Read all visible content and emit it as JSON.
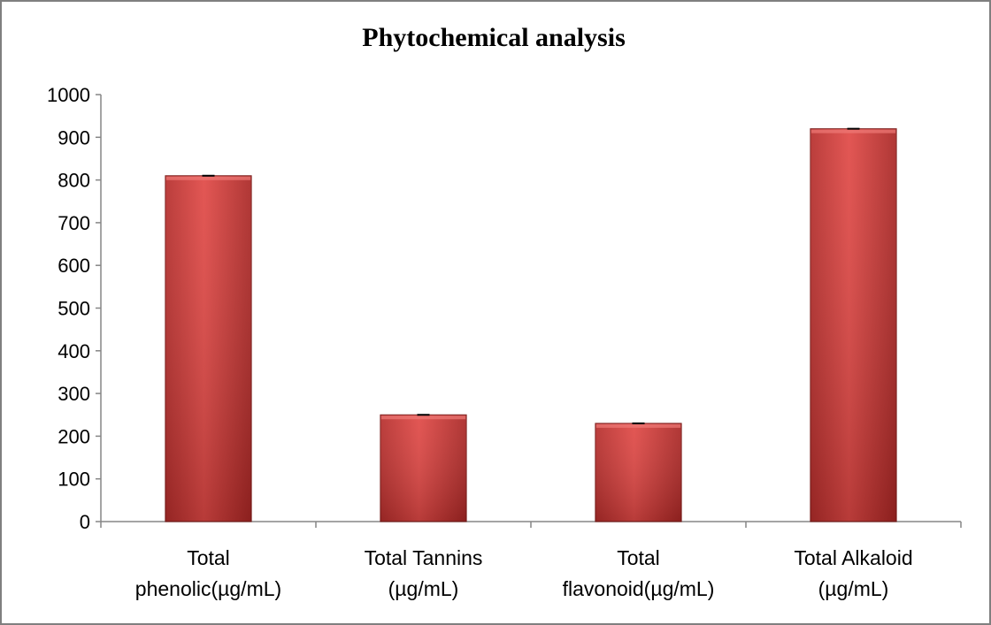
{
  "chart_data": {
    "type": "bar",
    "title": "Phytochemical analysis",
    "categories": [
      [
        "Total",
        "phenolic(µg/mL)"
      ],
      [
        "Total Tannins",
        "(µg/mL)"
      ],
      [
        "Total",
        "flavonoid(µg/mL)"
      ],
      [
        "Total Alkaloid",
        "(µg/mL)"
      ]
    ],
    "values": [
      810,
      250,
      230,
      920
    ],
    "ylim": [
      0,
      1000
    ],
    "yticks": [
      0,
      100,
      200,
      300,
      400,
      500,
      600,
      700,
      800,
      900,
      1000
    ],
    "grid": false,
    "legend": "none",
    "bar_color": "#d6403e",
    "bar_edge_color": "#7a1a18",
    "error_bars": true
  }
}
